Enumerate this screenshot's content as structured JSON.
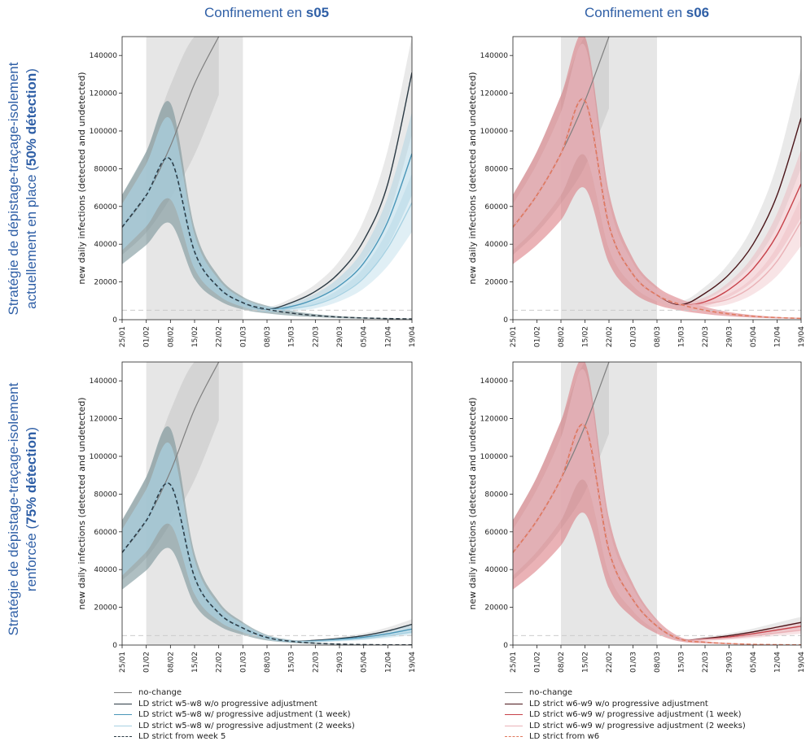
{
  "columns": [
    {
      "prefix": "Confinement en ",
      "bold": "s05"
    },
    {
      "prefix": "Confinement en ",
      "bold": "s06"
    }
  ],
  "rows": [
    {
      "line1": "Stratégie de dépistage-traçage-isolement",
      "line2_prefix": "actuellement en place (",
      "line2_bold": "50% détection",
      "line2_suffix": ")"
    },
    {
      "line1": "Stratégie de dépistage-traçage-isolement",
      "line2_prefix": "renforcée (",
      "line2_bold": "75% détection",
      "line2_suffix": ")"
    }
  ],
  "colors": {
    "title_blue": "#2f5fa6",
    "no_change": "#7f7f7f",
    "band_gray": "#bfbfbf",
    "blue_dark": "#2b3a44",
    "blue_mid": "#4a96b8",
    "blue_light": "#a7d1e2",
    "red_dark": "#4a1519",
    "red_mid": "#c7424a",
    "red_light": "#eab2b7",
    "lockdown_shade": "#e6e6e6"
  },
  "legends": [
    {
      "items": [
        {
          "label": "no-change",
          "color": "#7f7f7f",
          "style": "solid"
        },
        {
          "label": "LD strict w5-w8 w/o progressive adjustment",
          "color": "#2b3a44",
          "style": "solid"
        },
        {
          "label": "LD strict w5-w8 w/ progressive adjustment (1 week)",
          "color": "#4a96b8",
          "style": "solid"
        },
        {
          "label": "LD strict w5-w8 w/ progressive adjustment (2 weeks)",
          "color": "#a7d1e2",
          "style": "solid"
        },
        {
          "label": "LD strict from week 5",
          "color": "#2b3a44",
          "style": "dashed"
        }
      ]
    },
    {
      "items": [
        {
          "label": "no-change",
          "color": "#7f7f7f",
          "style": "solid"
        },
        {
          "label": "LD strict w6-w9 w/o progressive adjustment",
          "color": "#4a1519",
          "style": "solid"
        },
        {
          "label": "LD strict w6-w9 w/ progressive adjustment (1 week)",
          "color": "#c7424a",
          "style": "solid"
        },
        {
          "label": "LD strict w6-w9 w/ progressive adjustment (2 weeks)",
          "color": "#eab2b7",
          "style": "solid"
        },
        {
          "label": "LD strict from w6",
          "color": "#e07a5f",
          "style": "dashed"
        }
      ]
    }
  ],
  "chart_data": [
    {
      "type": "line",
      "panel": "s05-50",
      "ylabel": "new daily infections (detected and undetected)",
      "xticks": [
        "25/01",
        "01/02",
        "08/02",
        "15/02",
        "22/02",
        "01/03",
        "08/03",
        "15/03",
        "22/03",
        "29/03",
        "05/04",
        "12/04",
        "19/04"
      ],
      "yticks": [
        0,
        20000,
        40000,
        60000,
        80000,
        100000,
        120000,
        140000
      ],
      "ylim": [
        0,
        150000
      ],
      "xlim_days": [
        0,
        84
      ],
      "lockdown_days": [
        7,
        35
      ],
      "threshold": 5000,
      "series": [
        {
          "name": "no-change",
          "x": [
            0,
            7,
            14,
            21,
            28
          ],
          "y": [
            49000,
            66000,
            92000,
            125000,
            170000
          ]
        },
        {
          "name": "LD strict w5-w8 w/o progressive adjustment",
          "x": [
            0,
            7,
            14,
            21,
            28,
            35,
            42,
            49,
            56,
            63,
            70,
            77,
            84
          ],
          "y": [
            49000,
            66000,
            85000,
            36000,
            17000,
            9000,
            5500,
            9000,
            15000,
            25000,
            42000,
            72000,
            131000
          ]
        },
        {
          "name": "LD strict w5-w8 w/ progressive adjustment (1 week)",
          "x": [
            0,
            7,
            14,
            21,
            28,
            35,
            42,
            49,
            56,
            63,
            70,
            77,
            84
          ],
          "y": [
            49000,
            66000,
            85000,
            36000,
            17000,
            9000,
            5500,
            7000,
            11000,
            18000,
            30000,
            52000,
            88000
          ]
        },
        {
          "name": "LD strict w5-w8 w/ progressive adjustment (2 weeks)",
          "x": [
            0,
            7,
            14,
            21,
            28,
            35,
            42,
            49,
            56,
            63,
            70,
            77,
            84
          ],
          "y": [
            49000,
            66000,
            85000,
            36000,
            17000,
            9000,
            5500,
            6000,
            8000,
            13000,
            22000,
            38000,
            62000
          ]
        },
        {
          "name": "LD strict from week 5",
          "x": [
            0,
            7,
            14,
            21,
            28,
            35,
            42,
            49,
            56,
            63,
            70,
            77,
            84
          ],
          "y": [
            49000,
            66000,
            85000,
            36000,
            17000,
            9000,
            5500,
            3500,
            2200,
            1400,
            900,
            600,
            400
          ]
        }
      ]
    },
    {
      "type": "line",
      "panel": "s06-50",
      "ylabel": "new daily infections (detected and undetected)",
      "xticks": [
        "25/01",
        "01/02",
        "08/02",
        "15/02",
        "22/02",
        "01/03",
        "08/03",
        "15/03",
        "22/03",
        "29/03",
        "05/04",
        "12/04",
        "19/04"
      ],
      "yticks": [
        0,
        20000,
        40000,
        60000,
        80000,
        100000,
        120000,
        140000
      ],
      "ylim": [
        0,
        150000
      ],
      "xlim_days": [
        0,
        84
      ],
      "lockdown_days": [
        14,
        42
      ],
      "threshold": 5000,
      "series": [
        {
          "name": "no-change",
          "x": [
            0,
            7,
            14,
            21,
            28
          ],
          "y": [
            49000,
            66000,
            88000,
            116000,
            160000
          ]
        },
        {
          "name": "LD strict w6-w9 w/o progressive adjustment",
          "x": [
            0,
            7,
            14,
            21,
            28,
            35,
            42,
            49,
            56,
            63,
            70,
            77,
            84
          ],
          "y": [
            49000,
            66000,
            88000,
            116000,
            50000,
            24000,
            13000,
            8000,
            14000,
            24000,
            40000,
            66000,
            107000
          ]
        },
        {
          "name": "LD strict w6-w9 w/ progressive adjustment (1 week)",
          "x": [
            0,
            7,
            14,
            21,
            28,
            35,
            42,
            49,
            56,
            63,
            70,
            77,
            84
          ],
          "y": [
            49000,
            66000,
            88000,
            116000,
            50000,
            24000,
            13000,
            8000,
            9500,
            16000,
            27000,
            45000,
            72000
          ]
        },
        {
          "name": "LD strict w6-w9 w/ progressive adjustment (2 weeks)",
          "x": [
            0,
            7,
            14,
            21,
            28,
            35,
            42,
            49,
            56,
            63,
            70,
            77,
            84
          ],
          "y": [
            49000,
            66000,
            88000,
            116000,
            50000,
            24000,
            13000,
            8000,
            8500,
            11000,
            18000,
            31000,
            52000
          ]
        },
        {
          "name": "LD strict from w6",
          "x": [
            0,
            7,
            14,
            21,
            28,
            35,
            42,
            49,
            56,
            63,
            70,
            77,
            84
          ],
          "y": [
            49000,
            66000,
            88000,
            116000,
            50000,
            24000,
            13000,
            8000,
            5000,
            3000,
            1800,
            1100,
            700
          ]
        }
      ]
    },
    {
      "type": "line",
      "panel": "s05-75",
      "ylabel": "new daily infections (detected and undetected)",
      "xticks": [
        "25/01",
        "01/02",
        "08/02",
        "15/02",
        "22/02",
        "01/03",
        "08/03",
        "15/03",
        "22/03",
        "29/03",
        "05/04",
        "12/04",
        "19/04"
      ],
      "yticks": [
        0,
        20000,
        40000,
        60000,
        80000,
        100000,
        120000,
        140000
      ],
      "ylim": [
        0,
        150000
      ],
      "xlim_days": [
        0,
        84
      ],
      "lockdown_days": [
        7,
        35
      ],
      "threshold": 5000,
      "series": [
        {
          "name": "no-change",
          "x": [
            0,
            7,
            14,
            21,
            28
          ],
          "y": [
            49000,
            66000,
            92000,
            125000,
            170000
          ]
        },
        {
          "name": "LD strict w5-w8 w/o progressive adjustment",
          "x": [
            0,
            7,
            14,
            21,
            28,
            35,
            42,
            49,
            56,
            63,
            70,
            77,
            84
          ],
          "y": [
            49000,
            66000,
            85000,
            36000,
            17000,
            9000,
            4000,
            2000,
            2500,
            3500,
            5000,
            7500,
            11000
          ]
        },
        {
          "name": "LD strict w5-w8 w/ progressive adjustment (1 week)",
          "x": [
            0,
            7,
            14,
            21,
            28,
            35,
            42,
            49,
            56,
            63,
            70,
            77,
            84
          ],
          "y": [
            49000,
            66000,
            85000,
            36000,
            17000,
            9000,
            4000,
            2000,
            2200,
            3000,
            4200,
            6000,
            8500
          ]
        },
        {
          "name": "LD strict w5-w8 w/ progressive adjustment (2 weeks)",
          "x": [
            0,
            7,
            14,
            21,
            28,
            35,
            42,
            49,
            56,
            63,
            70,
            77,
            84
          ],
          "y": [
            49000,
            66000,
            85000,
            36000,
            17000,
            9000,
            4000,
            2000,
            2000,
            2600,
            3500,
            5000,
            7000
          ]
        },
        {
          "name": "LD strict from week 5",
          "x": [
            0,
            7,
            14,
            21,
            28,
            35,
            42,
            49,
            56,
            63,
            70,
            77,
            84
          ],
          "y": [
            49000,
            66000,
            85000,
            36000,
            17000,
            9000,
            4000,
            2000,
            1000,
            500,
            250,
            130,
            70
          ]
        }
      ]
    },
    {
      "type": "line",
      "panel": "s06-75",
      "ylabel": "new daily infections (detected and undetected)",
      "xticks": [
        "25/01",
        "01/02",
        "08/02",
        "15/02",
        "22/02",
        "01/03",
        "08/03",
        "15/03",
        "22/03",
        "29/03",
        "05/04",
        "12/04",
        "19/04"
      ],
      "yticks": [
        0,
        20000,
        40000,
        60000,
        80000,
        100000,
        120000,
        140000
      ],
      "ylim": [
        0,
        150000
      ],
      "xlim_days": [
        0,
        84
      ],
      "lockdown_days": [
        14,
        42
      ],
      "threshold": 5000,
      "series": [
        {
          "name": "no-change",
          "x": [
            0,
            7,
            14,
            21,
            28
          ],
          "y": [
            49000,
            66000,
            88000,
            116000,
            160000
          ]
        },
        {
          "name": "LD strict w6-w9 w/o progressive adjustment",
          "x": [
            0,
            7,
            14,
            21,
            28,
            35,
            42,
            49,
            56,
            63,
            70,
            77,
            84
          ],
          "y": [
            49000,
            66000,
            88000,
            116000,
            50000,
            24000,
            10000,
            3000,
            3500,
            5000,
            7000,
            9500,
            12000
          ]
        },
        {
          "name": "LD strict w6-w9 w/ progressive adjustment (1 week)",
          "x": [
            0,
            7,
            14,
            21,
            28,
            35,
            42,
            49,
            56,
            63,
            70,
            77,
            84
          ],
          "y": [
            49000,
            66000,
            88000,
            116000,
            50000,
            24000,
            10000,
            3000,
            3200,
            4300,
            6000,
            8000,
            10000
          ]
        },
        {
          "name": "LD strict w6-w9 w/ progressive adjustment (2 weeks)",
          "x": [
            0,
            7,
            14,
            21,
            28,
            35,
            42,
            49,
            56,
            63,
            70,
            77,
            84
          ],
          "y": [
            49000,
            66000,
            88000,
            116000,
            50000,
            24000,
            10000,
            3000,
            3000,
            3800,
            5000,
            6500,
            8000
          ]
        },
        {
          "name": "LD strict from w6",
          "x": [
            0,
            7,
            14,
            21,
            28,
            35,
            42,
            49,
            56,
            63,
            70,
            77,
            84
          ],
          "y": [
            49000,
            66000,
            88000,
            116000,
            50000,
            24000,
            10000,
            3000,
            1500,
            800,
            400,
            200,
            100
          ]
        }
      ]
    }
  ]
}
